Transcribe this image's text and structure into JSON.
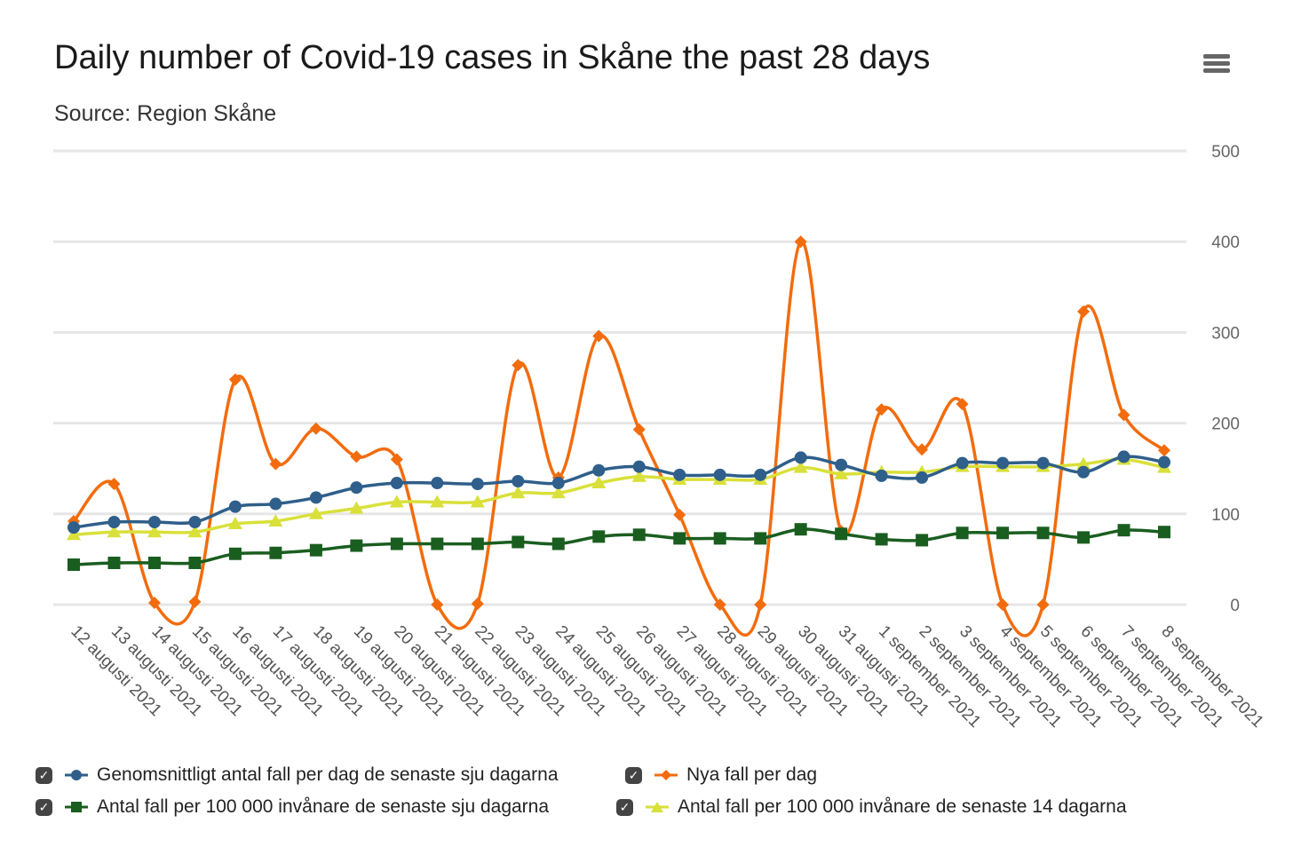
{
  "header": {
    "title": "Daily number of Covid-19 cases in Skåne the past 28 days",
    "subtitle": "Source: Region Skåne",
    "menu_icon": "hamburger-menu-icon"
  },
  "legend": [
    {
      "label": "Genomsnittligt antal fall per dag de senaste sju dagarna",
      "checked": true
    },
    {
      "label": "Nya fall per dag",
      "checked": true
    },
    {
      "label": "Antal fall per 100 000 invånare de senaste sju dagarna",
      "checked": true
    },
    {
      "label": "Antal fall per 100 000 invånare de senaste 14 dagarna",
      "checked": true
    }
  ],
  "chart_data": {
    "type": "line",
    "title": "Daily number of Covid-19 cases in Skåne the past 28 days",
    "subtitle": "Source: Region Skåne",
    "xlabel": "",
    "ylabel": "",
    "ylim": [
      0,
      500
    ],
    "yticks": [
      0,
      100,
      200,
      300,
      400,
      500
    ],
    "grid": true,
    "legend_position": "bottom",
    "categories": [
      "12 augusti 2021",
      "13 augusti 2021",
      "14 augusti 2021",
      "15 augusti 2021",
      "16 augusti 2021",
      "17 augusti 2021",
      "18 augusti 2021",
      "19 augusti 2021",
      "20 augusti 2021",
      "21 augusti 2021",
      "22 augusti 2021",
      "23 augusti 2021",
      "24 augusti 2021",
      "25 augusti 2021",
      "26 augusti 2021",
      "27 augusti 2021",
      "28 augusti 2021",
      "29 augusti 2021",
      "30 augusti 2021",
      "31 augusti 2021",
      "1 september 2021",
      "2 september 2021",
      "3 september 2021",
      "4 september 2021",
      "5 september 2021",
      "6 september 2021",
      "7 september 2021",
      "8 september 2021"
    ],
    "series": [
      {
        "name": "Genomsnittligt antal fall per dag de senaste sju dagarna",
        "color": "#2f5f8a",
        "marker": "circle",
        "values": [
          85,
          91,
          91,
          91,
          108,
          111,
          118,
          129,
          134,
          134,
          133,
          136,
          134,
          148,
          152,
          143,
          143,
          143,
          162,
          154,
          142,
          140,
          156,
          156,
          156,
          146,
          163,
          157
        ]
      },
      {
        "name": "Nya fall per dag",
        "color": "#f26c0d",
        "marker": "diamond",
        "values": [
          92,
          133,
          2,
          3,
          248,
          155,
          194,
          163,
          160,
          0,
          1,
          264,
          140,
          296,
          193,
          99,
          0,
          0,
          400,
          81,
          215,
          171,
          221,
          0,
          0,
          323,
          209,
          170
        ]
      },
      {
        "name": "Antal fall per 100 000 invånare de senaste sju dagarna",
        "color": "#1a5e1f",
        "marker": "square",
        "values": [
          44,
          46,
          46,
          46,
          56,
          57,
          60,
          65,
          67,
          67,
          67,
          69,
          67,
          75,
          77,
          73,
          73,
          73,
          83,
          78,
          72,
          71,
          79,
          79,
          79,
          74,
          82,
          80
        ]
      },
      {
        "name": "Antal fall per 100 000 invånare de senaste 14 dagarna",
        "color": "#d9e03a",
        "marker": "triangle",
        "values": [
          77,
          80,
          80,
          80,
          89,
          92,
          100,
          106,
          113,
          113,
          113,
          123,
          123,
          134,
          141,
          138,
          138,
          138,
          151,
          144,
          146,
          146,
          152,
          152,
          152,
          155,
          160,
          151
        ]
      }
    ]
  }
}
